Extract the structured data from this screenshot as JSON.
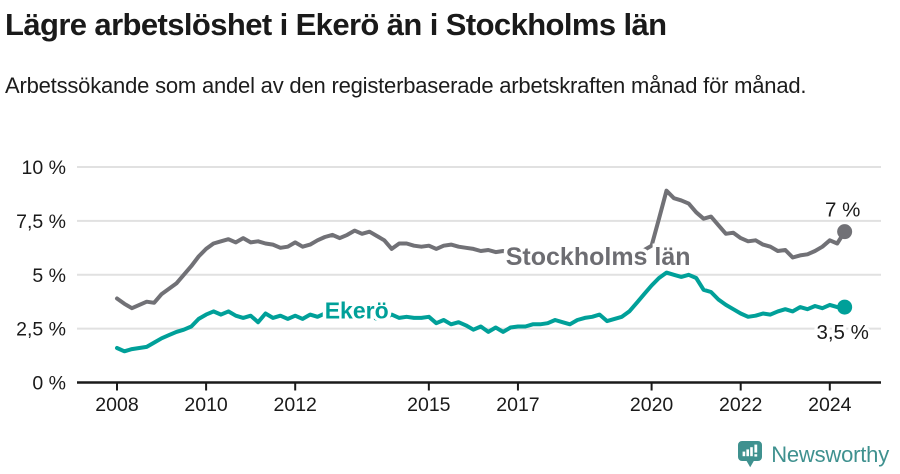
{
  "header": {
    "title": "Lägre arbetslöshet i Ekerö än i Stockholms län",
    "subtitle": "Arbetssökande som andel av den registerbaserade arbetskraften månad för månad."
  },
  "footer": {
    "brand": "Newsworthy",
    "logo_icon": "bar-chart-speech-bubble-icon"
  },
  "colors": {
    "text_dark": "#1a1a1a",
    "gridline": "#e1e1e1",
    "axis": "#1a1a1a",
    "stockholm_gray": "#717176",
    "stockholm_label_gray": "#6d6d72",
    "ekero_teal": "#00a099",
    "logo_teal": "#3f918f"
  },
  "chart_data": {
    "type": "line",
    "title": "Lägre arbetslöshet i Ekerö än i Stockholms län",
    "subtitle": "Arbetssökande som andel av den registerbaserade arbetskraften månad för månad.",
    "xlabel": "",
    "ylabel": "",
    "unit": "%",
    "ylim": [
      0,
      10
    ],
    "xlim": [
      2007.85,
      2025.1
    ],
    "grid": "horizontal",
    "legend_position": "inline-labels",
    "y_ticks": [
      0,
      2.5,
      5,
      7.5,
      10
    ],
    "y_tick_labels": [
      "0 %",
      "2,5 %",
      "5 %",
      "7,5 %",
      "10 %"
    ],
    "x_tick_years": [
      2008,
      2010,
      2012,
      2015,
      2017,
      2020,
      2022,
      2024
    ],
    "x_tick_labels": [
      "2008",
      "2010",
      "2012",
      "2015",
      "2017",
      "2020",
      "2022",
      "2024"
    ],
    "x_start": 2008.0,
    "x_step": 0.1666667,
    "series": [
      {
        "name": "Stockholms län",
        "color": "#717176",
        "label_color": "#6d6d72",
        "label_anchor": {
          "year": 2018.8,
          "value": 5.82
        },
        "end_label": "7 %",
        "end_value": 7.0,
        "values": [
          3.9,
          3.65,
          3.45,
          3.6,
          3.75,
          3.7,
          4.1,
          4.35,
          4.6,
          5.0,
          5.4,
          5.85,
          6.2,
          6.45,
          6.55,
          6.65,
          6.5,
          6.7,
          6.5,
          6.55,
          6.45,
          6.4,
          6.25,
          6.3,
          6.5,
          6.3,
          6.4,
          6.6,
          6.75,
          6.85,
          6.7,
          6.85,
          7.05,
          6.9,
          7.0,
          6.8,
          6.6,
          6.2,
          6.45,
          6.45,
          6.35,
          6.3,
          6.35,
          6.2,
          6.35,
          6.4,
          6.3,
          6.25,
          6.2,
          6.1,
          6.15,
          6.05,
          6.1,
          6.0,
          6.05,
          6.1,
          6.0,
          6.05,
          5.95,
          6.0,
          5.9,
          5.95,
          5.85,
          5.9,
          5.8,
          5.85,
          5.8,
          5.85,
          5.9,
          5.95,
          6.05,
          6.15,
          6.35,
          7.6,
          8.9,
          8.55,
          8.45,
          8.3,
          7.9,
          7.6,
          7.7,
          7.3,
          6.9,
          6.95,
          6.7,
          6.55,
          6.6,
          6.4,
          6.3,
          6.1,
          6.15,
          5.8,
          5.9,
          5.95,
          6.1,
          6.3,
          6.6,
          6.45,
          7.0
        ]
      },
      {
        "name": "Ekerö",
        "color": "#00a099",
        "label_color": "#00a099",
        "label_anchor": {
          "year": 2013.38,
          "value": 3.35
        },
        "end_label": "3,5 %",
        "end_value": 3.5,
        "values": [
          1.6,
          1.45,
          1.55,
          1.6,
          1.65,
          1.85,
          2.05,
          2.2,
          2.35,
          2.45,
          2.6,
          2.95,
          3.15,
          3.3,
          3.15,
          3.3,
          3.1,
          3.0,
          3.1,
          2.8,
          3.2,
          3.0,
          3.1,
          2.95,
          3.1,
          2.95,
          3.15,
          3.05,
          3.2,
          3.1,
          3.25,
          3.1,
          3.2,
          3.0,
          3.1,
          2.95,
          3.0,
          3.15,
          3.0,
          3.05,
          3.0,
          3.0,
          3.05,
          2.75,
          2.9,
          2.7,
          2.8,
          2.65,
          2.45,
          2.6,
          2.35,
          2.55,
          2.35,
          2.55,
          2.6,
          2.6,
          2.7,
          2.7,
          2.75,
          2.9,
          2.8,
          2.7,
          2.9,
          3.0,
          3.05,
          3.15,
          2.85,
          2.95,
          3.05,
          3.3,
          3.7,
          4.1,
          4.5,
          4.85,
          5.1,
          5.0,
          4.9,
          5.0,
          4.85,
          4.3,
          4.2,
          3.85,
          3.6,
          3.4,
          3.2,
          3.05,
          3.1,
          3.2,
          3.15,
          3.3,
          3.4,
          3.3,
          3.5,
          3.4,
          3.55,
          3.45,
          3.6,
          3.5,
          3.5
        ]
      }
    ]
  }
}
